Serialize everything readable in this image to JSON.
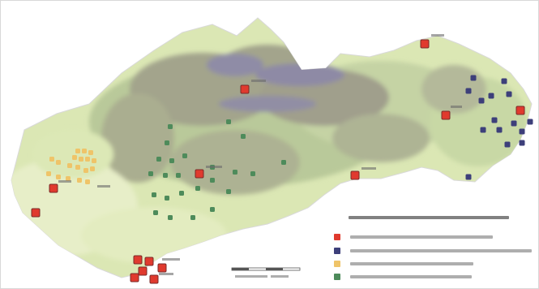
{
  "map": {
    "colors": {
      "lowland": "#dbe7b4",
      "lowland_light": "#e7eec8",
      "hills": "#b9c99a",
      "mountains": "#a3a48c",
      "high_mountains": "#8e8aa5",
      "border": "#d9d9d9"
    }
  },
  "legend": {
    "items": [
      {
        "color": "#e03a2e",
        "icon": "red-square-icon"
      },
      {
        "color": "#3d3f7a",
        "icon": "navy-square-icon"
      },
      {
        "color": "#efc469",
        "icon": "tan-square-icon"
      },
      {
        "color": "#4e8b5b",
        "icon": "green-square-icon"
      }
    ]
  },
  "markers": {
    "red": {
      "color": "#e03a2e",
      "border": "#7a2a28"
    },
    "navy": {
      "color": "#3d3f7a"
    },
    "tan": {
      "color": "#efc469"
    },
    "green": {
      "color": "#4e8b5b"
    }
  }
}
